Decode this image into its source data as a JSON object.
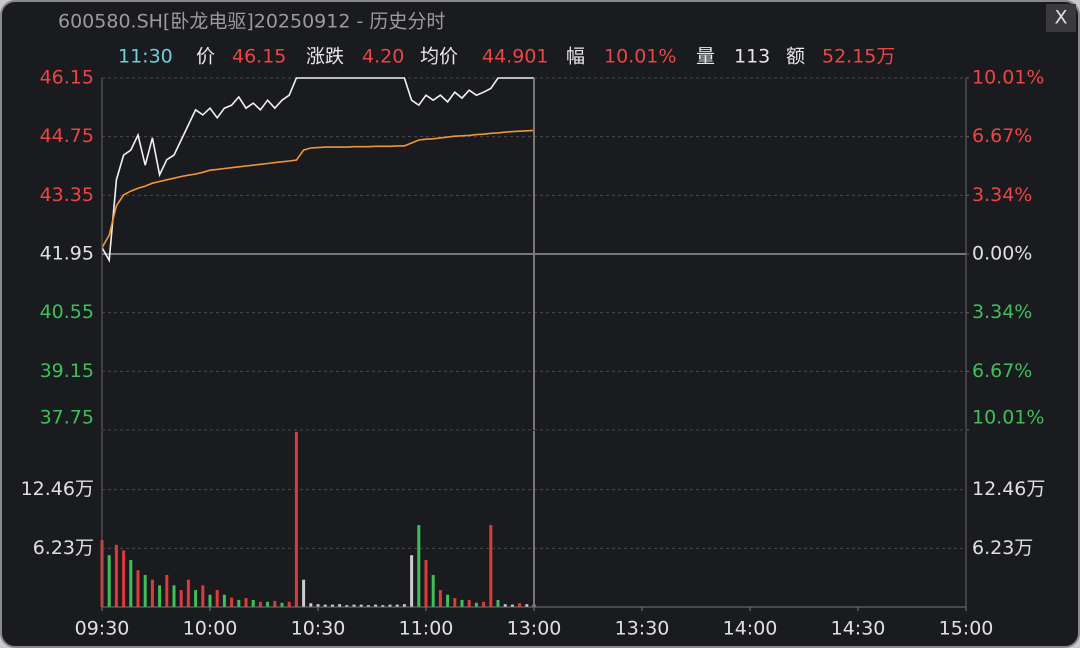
{
  "header": {
    "title": "600580.SH[卧龙电驱]20250912 - 历史分时",
    "close": "X"
  },
  "quote": {
    "time": "11:30",
    "items": [
      {
        "label": "价",
        "value": "46.15",
        "color": "#ef4444"
      },
      {
        "label": "涨跌",
        "value": "4.20",
        "color": "#ef4444"
      },
      {
        "label": "均价",
        "value": "44.901",
        "color": "#ef4444"
      },
      {
        "label": "幅",
        "value": "10.01%",
        "color": "#ef4444"
      },
      {
        "label": "量",
        "value": "113",
        "color": "#e8e8e8"
      },
      {
        "label": "额",
        "value": "52.15万",
        "color": "#ef4444"
      }
    ]
  },
  "chart_data": [
    {
      "type": "line",
      "x": [
        0,
        2,
        4,
        6,
        8,
        10,
        12,
        14,
        16,
        18,
        20,
        22,
        24,
        26,
        28,
        30,
        32,
        34,
        36,
        38,
        40,
        42,
        44,
        46,
        48,
        50,
        52,
        54,
        56,
        58,
        60,
        62,
        64,
        66,
        68,
        70,
        72,
        74,
        76,
        78,
        80,
        82,
        84,
        86,
        88,
        90,
        92,
        94,
        96,
        98,
        100,
        102,
        104,
        106,
        108,
        110,
        112,
        114,
        116,
        118,
        120
      ],
      "series": [
        {
          "color": "#f2f2f2",
          "values": [
            42.1,
            41.8,
            43.72,
            44.31,
            44.43,
            44.79,
            44.07,
            44.72,
            43.84,
            44.2,
            44.31,
            44.67,
            45.03,
            45.39,
            45.27,
            45.43,
            45.2,
            45.43,
            45.5,
            45.7,
            45.43,
            45.55,
            45.39,
            45.62,
            45.43,
            45.62,
            45.74,
            46.15,
            46.15,
            46.15,
            46.15,
            46.15,
            46.15,
            46.15,
            46.15,
            46.15,
            46.15,
            46.15,
            46.15,
            46.15,
            46.15,
            46.15,
            46.15,
            45.62,
            45.5,
            45.74,
            45.62,
            45.74,
            45.58,
            45.81,
            45.67,
            45.86,
            45.74,
            45.81,
            45.9,
            46.15,
            46.15,
            46.15,
            46.15,
            46.15,
            46.15
          ]
        },
        {
          "color": "#f0953a",
          "values": [
            42.1,
            42.4,
            43.1,
            43.36,
            43.45,
            43.52,
            43.57,
            43.64,
            43.68,
            43.72,
            43.76,
            43.8,
            43.83,
            43.86,
            43.9,
            43.95,
            43.97,
            43.99,
            44.01,
            44.03,
            44.05,
            44.07,
            44.09,
            44.11,
            44.13,
            44.15,
            44.17,
            44.19,
            44.43,
            44.48,
            44.49,
            44.5,
            44.5,
            44.5,
            44.5,
            44.51,
            44.51,
            44.51,
            44.52,
            44.52,
            44.52,
            44.53,
            44.53,
            44.6,
            44.67,
            44.69,
            44.7,
            44.72,
            44.74,
            44.76,
            44.77,
            44.78,
            44.8,
            44.81,
            44.83,
            44.84,
            44.86,
            44.87,
            44.88,
            44.89,
            44.9
          ]
        }
      ],
      "xlim": [
        0,
        240
      ],
      "ylim": [
        37.75,
        46.15
      ],
      "yticks": [
        46.15,
        44.75,
        43.35,
        41.95,
        40.55,
        39.15,
        37.75
      ],
      "y2lim": [
        -10.01,
        10.01
      ],
      "y2ticks": [
        {
          "value": 10.01,
          "label": "10.01%"
        },
        {
          "value": 6.67,
          "label": "6.67%"
        },
        {
          "value": 3.34,
          "label": "3.34%"
        },
        {
          "value": 0,
          "label": "0.00%"
        },
        {
          "value": -3.34,
          "label": "3.34%"
        },
        {
          "value": -6.67,
          "label": "6.67%"
        },
        {
          "value": -10.01,
          "label": "10.01%"
        }
      ],
      "grid": true
    },
    {
      "type": "bar",
      "x": [
        0,
        2,
        4,
        6,
        8,
        10,
        12,
        14,
        16,
        18,
        20,
        22,
        24,
        26,
        28,
        30,
        32,
        34,
        36,
        38,
        40,
        42,
        44,
        46,
        48,
        50,
        52,
        54,
        56,
        58,
        60,
        62,
        64,
        66,
        68,
        70,
        72,
        74,
        76,
        78,
        80,
        82,
        84,
        86,
        88,
        90,
        92,
        94,
        96,
        98,
        100,
        102,
        104,
        106,
        108,
        110,
        112,
        114,
        116,
        118,
        120
      ],
      "values": [
        71000,
        55000,
        66000,
        60000,
        50000,
        39000,
        34000,
        29000,
        23000,
        34000,
        23000,
        18000,
        29000,
        18000,
        23000,
        13000,
        18000,
        13000,
        10000,
        7500,
        9500,
        7500,
        5500,
        5500,
        6500,
        4500,
        5500,
        186000,
        29000,
        4000,
        3000,
        2500,
        2500,
        3000,
        2000,
        2500,
        2500,
        2000,
        2500,
        2000,
        2500,
        2500,
        3000,
        55000,
        87000,
        50000,
        34000,
        18000,
        13000,
        9500,
        7500,
        7500,
        4500,
        5500,
        87000,
        7500,
        3000,
        2500,
        4000,
        3000,
        2500
      ],
      "colors": [
        "#e0383b",
        "#3fbf5a",
        "#e0383b",
        "#e0383b",
        "#3fbf5a",
        "#e0383b",
        "#3fbf5a",
        "#e0383b",
        "#3fbf5a",
        "#e0383b",
        "#3fbf5a",
        "#e0383b",
        "#e0383b",
        "#3fbf5a",
        "#e0383b",
        "#3fbf5a",
        "#e0383b",
        "#3fbf5a",
        "#e0383b",
        "#3fbf5a",
        "#e0383b",
        "#3fbf5a",
        "#e0383b",
        "#3fbf5a",
        "#e0383b",
        "#3fbf5a",
        "#e0383b",
        "#e0383b",
        "#cccccc",
        "#cccccc",
        "#cccccc",
        "#cccccc",
        "#cccccc",
        "#cccccc",
        "#cccccc",
        "#cccccc",
        "#cccccc",
        "#cccccc",
        "#cccccc",
        "#cccccc",
        "#cccccc",
        "#cccccc",
        "#cccccc",
        "#cccccc",
        "#3fbf5a",
        "#e0383b",
        "#3fbf5a",
        "#e0383b",
        "#3fbf5a",
        "#e0383b",
        "#3fbf5a",
        "#e0383b",
        "#3fbf5a",
        "#e0383b",
        "#e0383b",
        "#3fbf5a",
        "#cccccc",
        "#cccccc",
        "#e0383b",
        "#cccccc",
        "#cccccc"
      ],
      "xlim": [
        0,
        240
      ],
      "xticks": [
        {
          "value": 0,
          "label": "09:30"
        },
        {
          "value": 30,
          "label": "10:00"
        },
        {
          "value": 60,
          "label": "10:30"
        },
        {
          "value": 90,
          "label": "11:00"
        },
        {
          "value": 120,
          "label": "13:00"
        },
        {
          "value": 150,
          "label": "13:30"
        },
        {
          "value": 180,
          "label": "14:00"
        },
        {
          "value": 210,
          "label": "14:30"
        },
        {
          "value": 240,
          "label": "15:00"
        }
      ],
      "ylim": [
        0,
        186900
      ],
      "yticks": [
        {
          "value": 124600,
          "label": "12.46万"
        },
        {
          "value": 62300,
          "label": "6.23万"
        }
      ],
      "grid": true
    }
  ]
}
